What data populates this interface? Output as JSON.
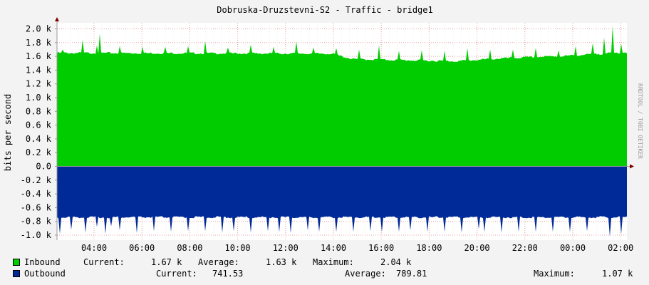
{
  "chart_data": {
    "type": "area",
    "title": "Dobruska-Druzstevni-S2 - Traffic - bridge1",
    "ylabel": "bits per second",
    "watermark": "RRDTOOL / TOBI OETIKER",
    "x_ticks": [
      "04:00",
      "06:00",
      "08:00",
      "10:00",
      "12:00",
      "14:00",
      "16:00",
      "18:00",
      "20:00",
      "22:00",
      "00:00",
      "02:00"
    ],
    "y_ticks": [
      "2.0 k",
      "1.8 k",
      "1.6 k",
      "1.4 k",
      "1.2 k",
      "1.0 k",
      "0.8 k",
      "0.6 k",
      "0.4 k",
      "0.2 k",
      "0.0",
      "-0.2 k",
      "-0.4 k",
      "-0.6 k",
      "-0.8 k",
      "-1.0 k"
    ],
    "ylim": [
      -1.05,
      2.05
    ],
    "y_unit": "k bits per second",
    "grid": true,
    "series": [
      {
        "name": "Inbound",
        "color": "#00cc00",
        "sign": 1,
        "base": 1.63,
        "baseline_trend": [
          [
            0,
            1.65
          ],
          [
            0.48,
            1.64
          ],
          [
            0.52,
            1.56
          ],
          [
            0.7,
            1.53
          ],
          [
            0.78,
            1.57
          ],
          [
            0.9,
            1.61
          ],
          [
            1.0,
            1.66
          ]
        ],
        "spikes": [
          [
            0.01,
            1.7
          ],
          [
            0.045,
            1.84
          ],
          [
            0.07,
            1.76
          ],
          [
            0.075,
            1.93
          ],
          [
            0.11,
            1.75
          ],
          [
            0.15,
            1.74
          ],
          [
            0.19,
            1.74
          ],
          [
            0.23,
            1.75
          ],
          [
            0.26,
            1.82
          ],
          [
            0.3,
            1.73
          ],
          [
            0.34,
            1.77
          ],
          [
            0.38,
            1.74
          ],
          [
            0.42,
            1.81
          ],
          [
            0.45,
            1.73
          ],
          [
            0.49,
            1.72
          ],
          [
            0.53,
            1.7
          ],
          [
            0.565,
            1.76
          ],
          [
            0.6,
            1.68
          ],
          [
            0.64,
            1.69
          ],
          [
            0.68,
            1.68
          ],
          [
            0.72,
            1.72
          ],
          [
            0.76,
            1.7
          ],
          [
            0.8,
            1.7
          ],
          [
            0.84,
            1.72
          ],
          [
            0.88,
            1.69
          ],
          [
            0.91,
            1.75
          ],
          [
            0.94,
            1.79
          ],
          [
            0.96,
            1.87
          ],
          [
            0.975,
            2.04
          ],
          [
            0.99,
            1.78
          ]
        ]
      },
      {
        "name": "Outbound",
        "color": "#002a97",
        "sign": -1,
        "base": 0.74,
        "spikes": [
          [
            0.005,
            0.98
          ],
          [
            0.025,
            0.92
          ],
          [
            0.05,
            0.96
          ],
          [
            0.07,
            0.88
          ],
          [
            0.085,
            0.98
          ],
          [
            0.095,
            0.87
          ],
          [
            0.11,
            0.93
          ],
          [
            0.14,
            0.97
          ],
          [
            0.17,
            0.94
          ],
          [
            0.2,
            0.95
          ],
          [
            0.23,
            0.94
          ],
          [
            0.26,
            0.94
          ],
          [
            0.29,
            0.96
          ],
          [
            0.31,
            0.94
          ],
          [
            0.34,
            0.96
          ],
          [
            0.37,
            0.94
          ],
          [
            0.39,
            0.95
          ],
          [
            0.41,
            0.97
          ],
          [
            0.44,
            0.93
          ],
          [
            0.46,
            0.95
          ],
          [
            0.49,
            0.95
          ],
          [
            0.52,
            0.95
          ],
          [
            0.55,
            0.94
          ],
          [
            0.57,
            0.95
          ],
          [
            0.6,
            0.95
          ],
          [
            0.62,
            0.93
          ],
          [
            0.65,
            0.95
          ],
          [
            0.68,
            0.95
          ],
          [
            0.71,
            0.96
          ],
          [
            0.74,
            0.91
          ],
          [
            0.75,
            0.95
          ],
          [
            0.78,
            0.96
          ],
          [
            0.81,
            0.95
          ],
          [
            0.84,
            0.95
          ],
          [
            0.87,
            0.95
          ],
          [
            0.9,
            0.95
          ],
          [
            0.93,
            0.94
          ],
          [
            0.97,
            1.02
          ],
          [
            0.99,
            0.98
          ]
        ]
      }
    ]
  },
  "legend": {
    "inbound": {
      "name": "Inbound",
      "color": "#00cc00",
      "current_label": "Current:",
      "current": "1.67 k",
      "average_label": "Average:",
      "average": "1.63 k",
      "maximum_label": "Maximum:",
      "maximum": "2.04 k"
    },
    "outbound": {
      "name": "Outbound",
      "color": "#002a97",
      "current_label": "Current:",
      "current": "741.53",
      "average_label": "Average:",
      "average": "789.81",
      "maximum_label": "Maximum:",
      "maximum": "1.07 k"
    }
  }
}
